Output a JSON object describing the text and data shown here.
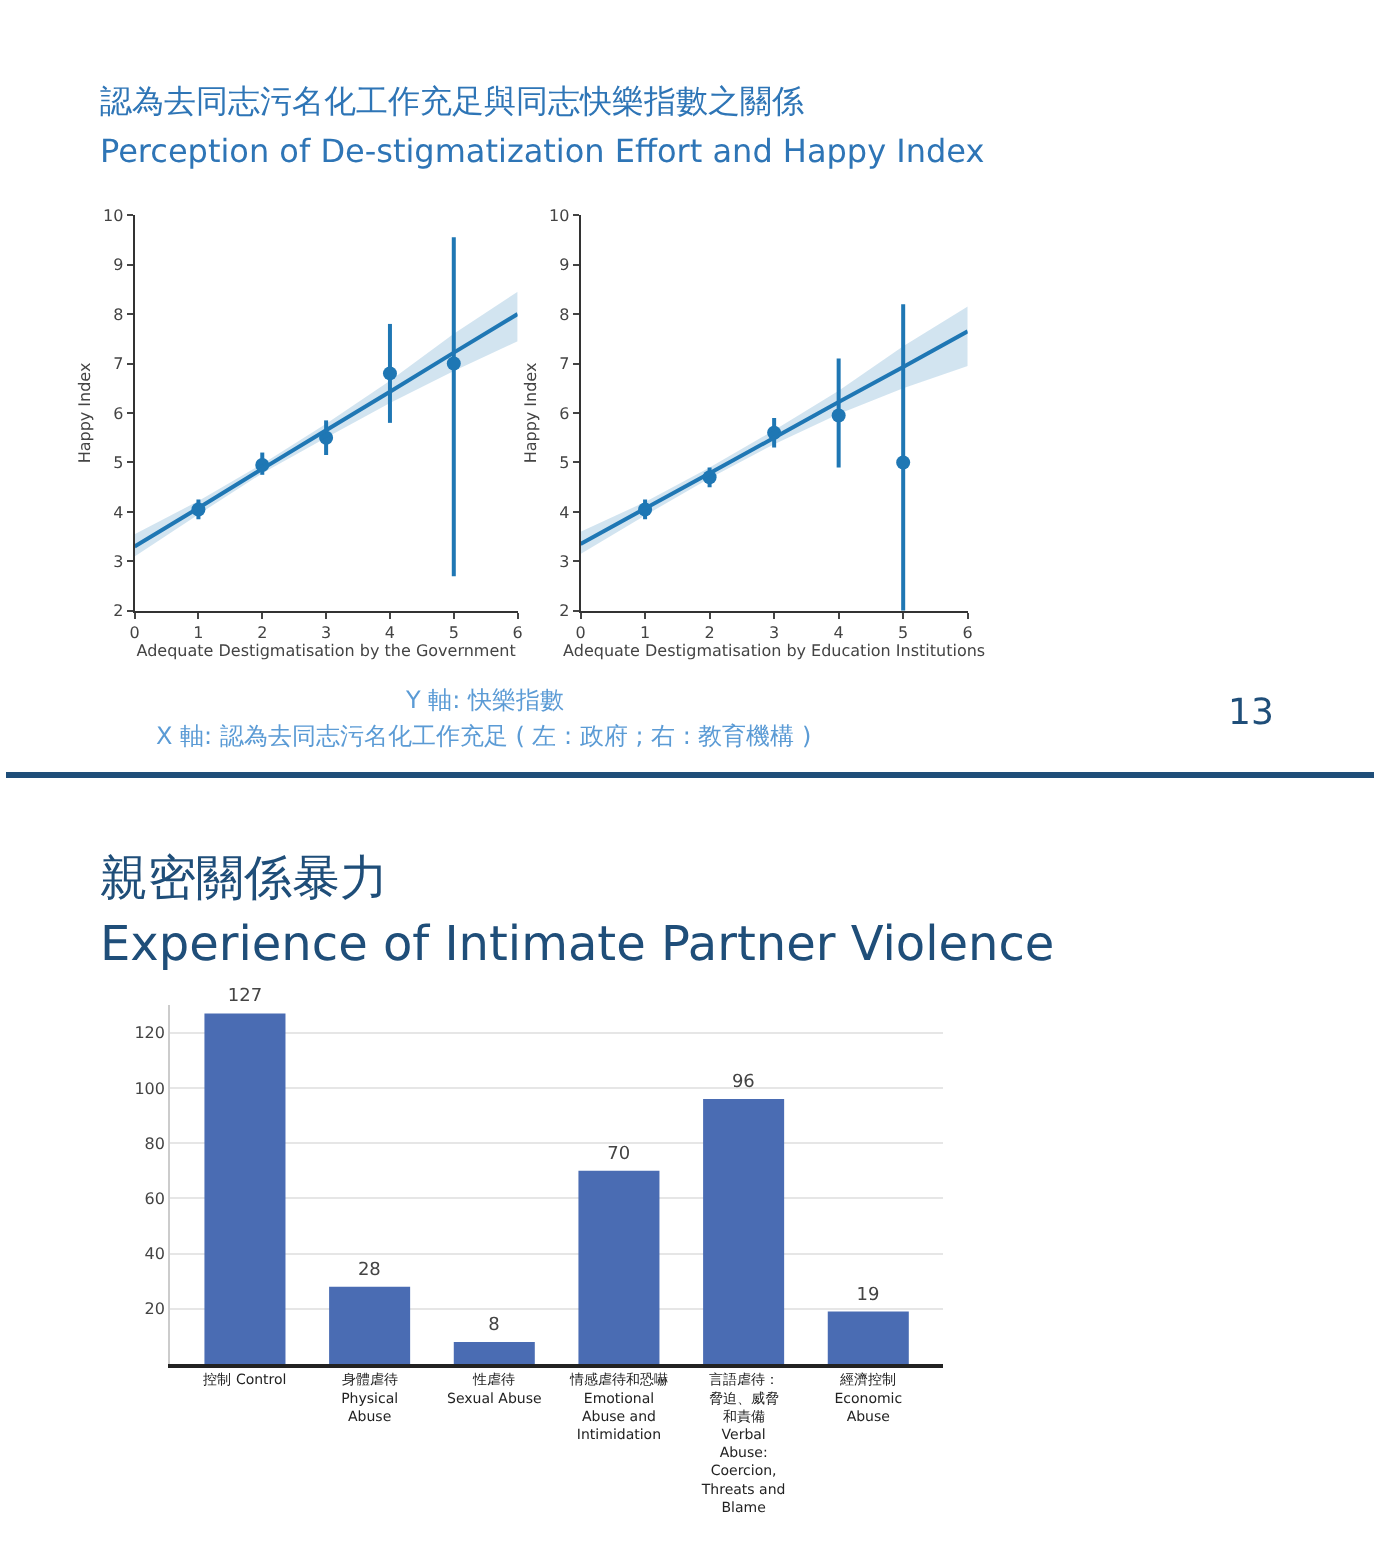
{
  "chart_data": [
    {
      "type": "scatter",
      "title": "認為去同志污名化工作充足與同志快樂指數之關係",
      "subtitle": "Perception of De-stigmatization Effort and Happy Index",
      "xlabel": "Adequate Destigmatisation by the Government",
      "ylabel": "Happy Index",
      "xlim": [
        0,
        6
      ],
      "xticks": [
        0,
        1,
        2,
        3,
        4,
        5,
        6
      ],
      "ylim": [
        2,
        10
      ],
      "yticks": [
        2,
        3,
        4,
        5,
        6,
        7,
        8,
        9,
        10
      ],
      "grid": false,
      "series": [
        {
          "type": "scatter",
          "marker": "circle",
          "color": "#1f77b4",
          "x": [
            1,
            2,
            3,
            4,
            5
          ],
          "values": [
            4.05,
            4.95,
            5.5,
            6.8,
            7.0
          ],
          "errors": [
            [
              3.85,
              4.25
            ],
            [
              4.75,
              5.2
            ],
            [
              5.15,
              5.85
            ],
            [
              5.8,
              7.8
            ],
            [
              2.7,
              9.55
            ]
          ]
        },
        {
          "type": "line",
          "line_style": "solid",
          "color": "#1f77b4",
          "x": [
            0,
            1,
            2,
            3,
            4,
            5,
            6
          ],
          "values": [
            3.3,
            4.08,
            4.87,
            5.65,
            6.43,
            7.22,
            8.0
          ],
          "lower": [
            3.1,
            3.95,
            4.78,
            5.5,
            6.2,
            6.85,
            7.45
          ],
          "upper": [
            3.55,
            4.22,
            4.97,
            5.78,
            6.65,
            7.6,
            8.45
          ]
        }
      ]
    },
    {
      "type": "scatter",
      "xlabel": "Adequate Destigmatisation by Education Institutions",
      "ylabel": "Happy Index",
      "xlim": [
        0,
        6
      ],
      "xticks": [
        0,
        1,
        2,
        3,
        4,
        5,
        6
      ],
      "ylim": [
        2,
        10
      ],
      "yticks": [
        2,
        3,
        4,
        5,
        6,
        7,
        8,
        9,
        10
      ],
      "grid": false,
      "annotations": [
        "Y 軸: 快樂指數",
        "X 軸: 認為去同志污名化工作充足 ( 左 : 政府 ; 右 : 教育機構 )",
        "13"
      ],
      "series": [
        {
          "type": "scatter",
          "marker": "circle",
          "color": "#1f77b4",
          "x": [
            1,
            2,
            3,
            4,
            5
          ],
          "values": [
            4.05,
            4.7,
            5.6,
            5.95,
            5.0
          ],
          "errors": [
            [
              3.85,
              4.25
            ],
            [
              4.5,
              4.9
            ],
            [
              5.3,
              5.9
            ],
            [
              4.9,
              7.1
            ],
            [
              2.0,
              8.2
            ]
          ]
        },
        {
          "type": "line",
          "line_style": "solid",
          "color": "#1f77b4",
          "x": [
            0,
            1,
            2,
            3,
            4,
            5,
            6
          ],
          "values": [
            3.35,
            4.07,
            4.78,
            5.5,
            6.22,
            6.93,
            7.65
          ],
          "lower": [
            3.15,
            3.93,
            4.68,
            5.37,
            5.98,
            6.5,
            6.95
          ],
          "upper": [
            3.6,
            4.2,
            4.9,
            5.65,
            6.45,
            7.35,
            8.15
          ]
        }
      ]
    },
    {
      "type": "bar",
      "title": "親密關係暴力",
      "subtitle": "Experience of Intimate Partner Violence",
      "categories": [
        "控制 Control",
        "身體虐待 Physical Abuse",
        "性虐待 Sexual Abuse",
        "情感虐待和恐嚇 Emotional Abuse and Intimidation",
        "言語虐待：脅迫、威脅和責備 Verbal Abuse: Coercion, Threats and Blame",
        "經濟控制 Economic Abuse"
      ],
      "values": [
        127,
        28,
        8,
        70,
        96,
        19
      ],
      "color": "#4a6cb3",
      "ylim": [
        0,
        130
      ],
      "yticks": [
        20,
        40,
        60,
        80,
        100,
        120
      ],
      "grid": "y",
      "data_labels": true
    }
  ]
}
